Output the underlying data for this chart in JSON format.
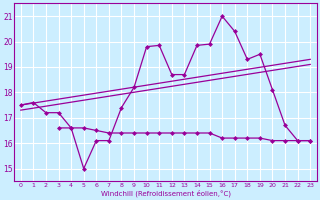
{
  "x": [
    0,
    1,
    2,
    3,
    4,
    5,
    6,
    7,
    8,
    9,
    10,
    11,
    12,
    13,
    14,
    15,
    16,
    17,
    18,
    19,
    20,
    21,
    22,
    23
  ],
  "main_y": [
    17.5,
    17.6,
    17.2,
    17.2,
    16.6,
    15.0,
    16.1,
    16.1,
    17.4,
    18.2,
    19.8,
    19.85,
    18.7,
    18.7,
    19.85,
    19.9,
    21.0,
    20.4,
    19.3,
    19.5,
    18.1,
    16.7,
    16.1,
    16.1
  ],
  "step_x": [
    3,
    4,
    5,
    6,
    7,
    8,
    9,
    10,
    11,
    12,
    13,
    14,
    15,
    16,
    17,
    18,
    19,
    20,
    21,
    22,
    23
  ],
  "step_y": [
    16.6,
    16.6,
    16.6,
    16.5,
    16.4,
    16.4,
    16.4,
    16.4,
    16.4,
    16.4,
    16.4,
    16.4,
    16.4,
    16.2,
    16.2,
    16.2,
    16.2,
    16.1,
    16.1,
    16.1,
    16.1
  ],
  "trend1_x0": 0,
  "trend1_x1": 23,
  "trend1_y0": 17.5,
  "trend1_y1": 19.3,
  "trend2_x0": 0,
  "trend2_x1": 23,
  "trend2_y0": 17.3,
  "trend2_y1": 19.1,
  "ylim": [
    14.5,
    21.5
  ],
  "xlim": [
    -0.5,
    23.5
  ],
  "yticks": [
    15,
    16,
    17,
    18,
    19,
    20,
    21
  ],
  "xticks": [
    0,
    1,
    2,
    3,
    4,
    5,
    6,
    7,
    8,
    9,
    10,
    11,
    12,
    13,
    14,
    15,
    16,
    17,
    18,
    19,
    20,
    21,
    22,
    23
  ],
  "xlabel": "Windchill (Refroidissement éolien,°C)",
  "line_color": "#990099",
  "bg_color": "#cceeff",
  "grid_color": "#ffffff"
}
